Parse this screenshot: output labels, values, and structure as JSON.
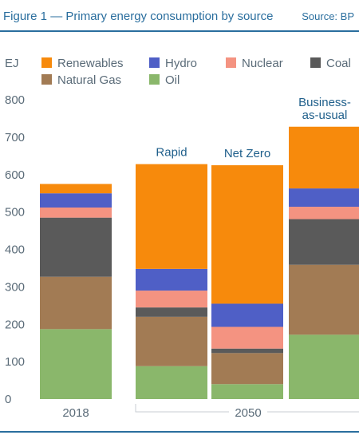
{
  "header": {
    "title": "Figure 1 — Primary energy consumption by source",
    "source": "Source: BP"
  },
  "colors": {
    "accent": "#2a6e9e",
    "axis_text": "#5a6b78",
    "annotation_text": "#1f5f8b"
  },
  "chart_data": {
    "type": "bar",
    "stacked": true,
    "title": "",
    "ylabel": "EJ",
    "xlabel": "",
    "ylim": [
      0,
      800
    ],
    "yticks": [
      0,
      100,
      200,
      300,
      400,
      500,
      600,
      700,
      800
    ],
    "grid": false,
    "legend_position": "top",
    "categories": [
      "2018",
      "Rapid",
      "Net Zero",
      "Business-as-usual"
    ],
    "x_axis_labels": [
      "2018",
      "2050"
    ],
    "bar_annotations": [
      "",
      "Rapid",
      "Net Zero",
      "Business-\nas-usual"
    ],
    "series": [
      {
        "name": "Oil",
        "color": "#8ab76b",
        "values": [
          187,
          88,
          40,
          172
        ]
      },
      {
        "name": "Natural Gas",
        "color": "#a27b54",
        "values": [
          140,
          132,
          83,
          187
        ]
      },
      {
        "name": "Coal",
        "color": "#5a5a5a",
        "values": [
          158,
          25,
          12,
          122
        ]
      },
      {
        "name": "Nuclear",
        "color": "#f49381",
        "values": [
          27,
          45,
          58,
          33
        ]
      },
      {
        "name": "Hydro",
        "color": "#4f5fc6",
        "values": [
          38,
          58,
          62,
          49
        ]
      },
      {
        "name": "Renewables",
        "color": "#f78a0c",
        "values": [
          25,
          280,
          370,
          165
        ]
      }
    ],
    "legend_order": [
      "Renewables",
      "Hydro",
      "Nuclear",
      "Coal",
      "Natural Gas",
      "Oil"
    ]
  }
}
